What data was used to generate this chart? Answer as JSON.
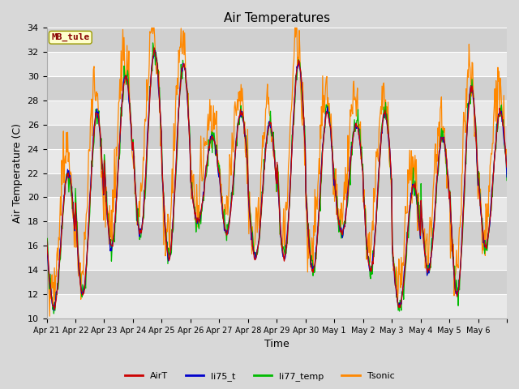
{
  "title": "Air Temperatures",
  "xlabel": "Time",
  "ylabel": "Air Temperature (C)",
  "ylim": [
    10,
    34
  ],
  "station_label": "MB_tule",
  "x_tick_labels": [
    "Apr 21",
    "Apr 22",
    "Apr 23",
    "Apr 24",
    "Apr 25",
    "Apr 26",
    "Apr 27",
    "Apr 28",
    "Apr 29",
    "Apr 30",
    "May 1",
    "May 2",
    "May 3",
    "May 4",
    "May 5",
    "May 6"
  ],
  "colors": {
    "AirT": "#cc0000",
    "li75_t": "#0000cc",
    "li77_temp": "#00bb00",
    "Tsonic": "#ff8800"
  },
  "band_light": "#e8e8e8",
  "band_dark": "#d0d0d0",
  "fig_bg": "#d8d8d8"
}
